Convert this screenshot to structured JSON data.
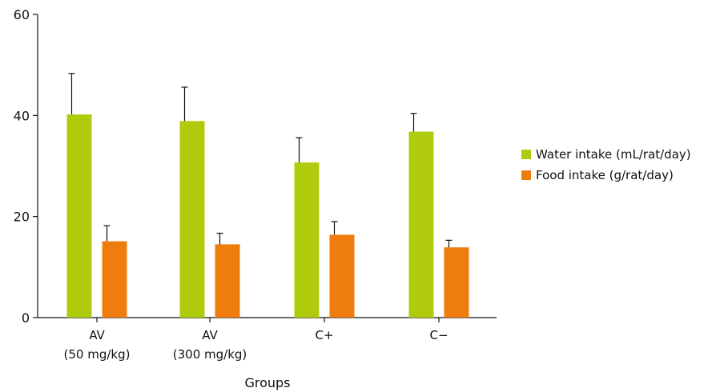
{
  "chart_data": {
    "type": "bar",
    "title": "",
    "xlabel": "Groups",
    "ylabel": "",
    "ylim": [
      0,
      60
    ],
    "yticks": [
      0,
      20,
      40,
      60
    ],
    "grid": false,
    "legend_position": "right",
    "categories": [
      [
        "AV",
        "(50 mg/kg)"
      ],
      [
        "AV",
        "(300 mg/kg)"
      ],
      [
        "C+"
      ],
      [
        "C−"
      ]
    ],
    "series": [
      {
        "name": "Water intake (mL/rat/day)",
        "color": "#b0cb0c",
        "values": [
          40.2,
          38.9,
          30.7,
          36.8
        ],
        "errors": [
          8.1,
          6.7,
          4.9,
          3.6
        ]
      },
      {
        "name": "Food intake (g/rat/day)",
        "color": "#ef7d0e",
        "values": [
          15.1,
          14.5,
          16.4,
          13.9
        ],
        "errors": [
          3.1,
          2.2,
          2.6,
          1.4
        ]
      }
    ]
  }
}
